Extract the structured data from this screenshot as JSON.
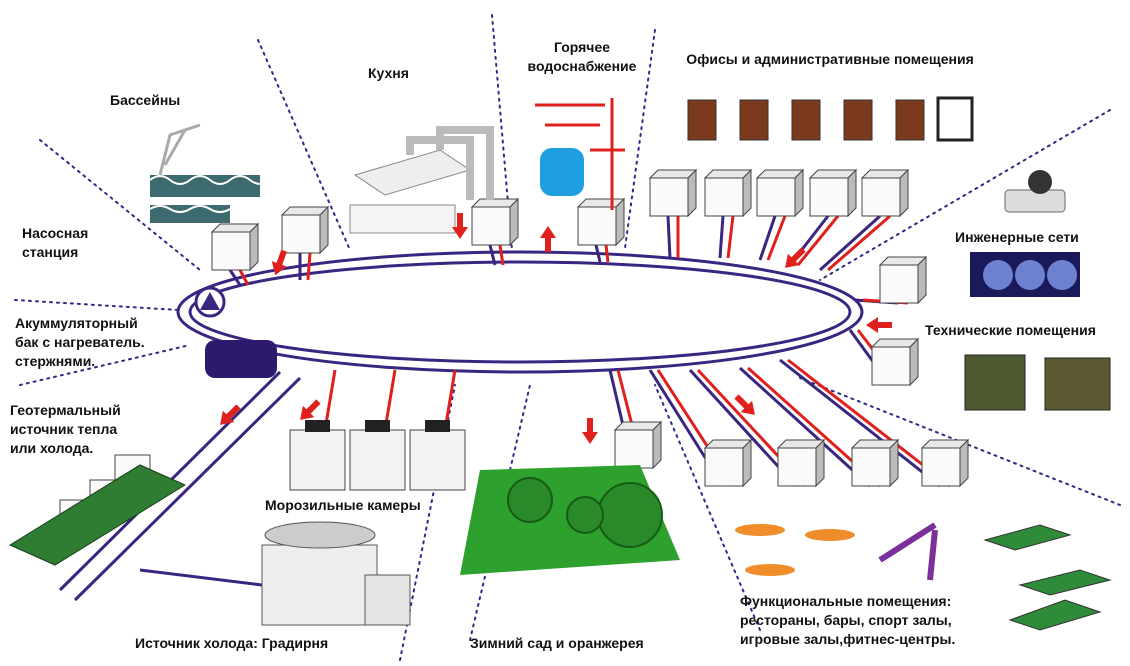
{
  "labels": {
    "pools": "Бассейны",
    "kitchen": "Кухня",
    "hot_water": [
      "Горячее",
      "водоснабжение"
    ],
    "offices": "Офисы и административные помещения",
    "pump_station": [
      "Насосная",
      "станция"
    ],
    "engineering": "Инженерные сети",
    "technical": "Технические помещения",
    "accumulator": [
      "Акуммуляторный",
      "бак с нагреватель.",
      "стержнями."
    ],
    "geothermal": [
      "Геотермальный",
      "источник тепла",
      "или холода."
    ],
    "freezers": "Морозильные камеры",
    "cooling_source": "Источник холода: Градирня",
    "winter_garden": "Зимний сад и оранжерея",
    "functional": [
      "Функциональные помещения:",
      "рестораны, бары, спорт залы,",
      "игровые залы,фитнес-центры."
    ]
  }
}
